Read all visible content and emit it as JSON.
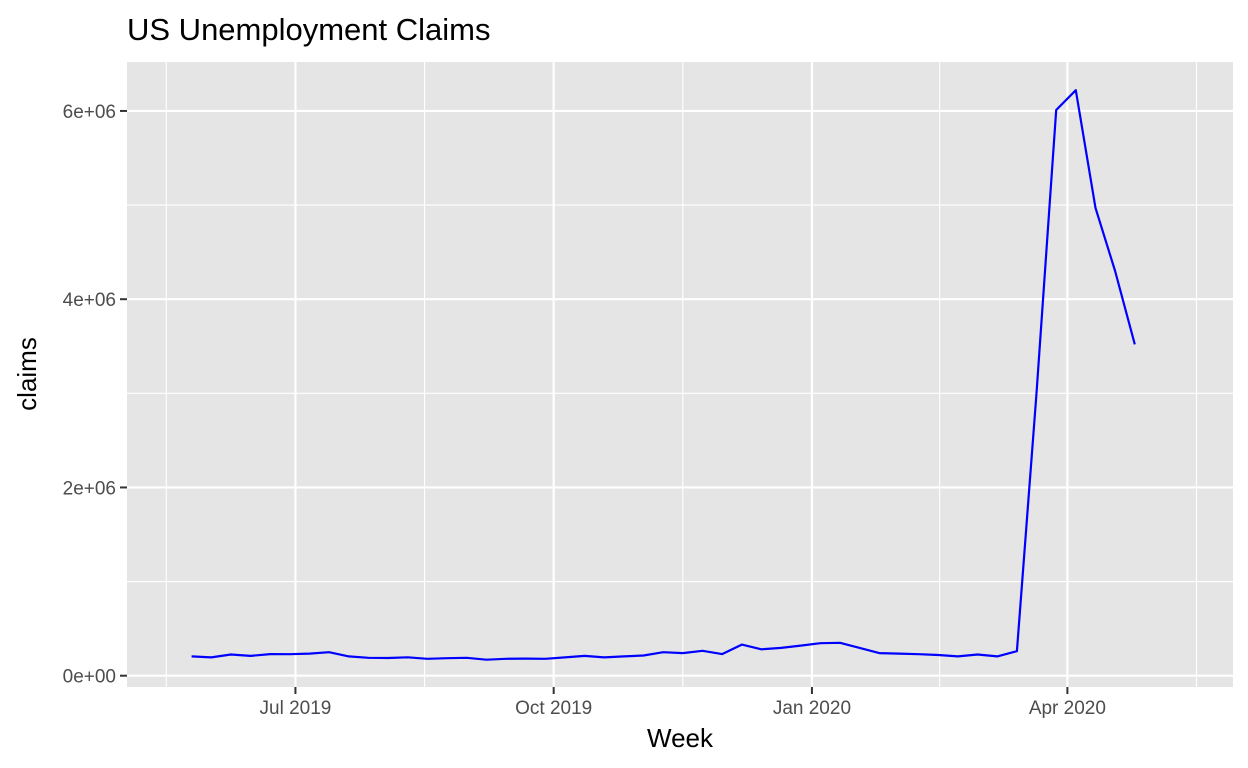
{
  "chart_data": {
    "type": "line",
    "title": "US Unemployment Claims",
    "xlabel": "Week",
    "ylabel": "claims",
    "colors": {
      "line": "#0000ff",
      "panel": "#e5e5e5",
      "grid": "#ffffff"
    },
    "grid": true,
    "legend": "none",
    "x_ticks": [
      {
        "label": "Jul 2019",
        "date": "2019-07-01"
      },
      {
        "label": "Oct 2019",
        "date": "2019-10-01"
      },
      {
        "label": "Jan 2020",
        "date": "2020-01-01"
      },
      {
        "label": "Apr 2020",
        "date": "2020-04-01"
      }
    ],
    "y_ticks": [
      {
        "label": "0e+00",
        "value": 0
      },
      {
        "label": "2e+06",
        "value": 2000000
      },
      {
        "label": "4e+06",
        "value": 4000000
      },
      {
        "label": "6e+06",
        "value": 6000000
      }
    ],
    "xlim": [
      "2019-05-02",
      "2020-05-30"
    ],
    "ylim": [
      -120000,
      6520000
    ],
    "series": [
      {
        "x": [
          "2019-05-25",
          "2019-06-01",
          "2019-06-08",
          "2019-06-15",
          "2019-06-22",
          "2019-06-29",
          "2019-07-06",
          "2019-07-13",
          "2019-07-20",
          "2019-07-27",
          "2019-08-03",
          "2019-08-10",
          "2019-08-17",
          "2019-08-24",
          "2019-08-31",
          "2019-09-07",
          "2019-09-14",
          "2019-09-21",
          "2019-09-28",
          "2019-10-05",
          "2019-10-12",
          "2019-10-19",
          "2019-10-26",
          "2019-11-02",
          "2019-11-09",
          "2019-11-16",
          "2019-11-23",
          "2019-11-30",
          "2019-12-07",
          "2019-12-14",
          "2019-12-21",
          "2019-12-28",
          "2020-01-04",
          "2020-01-11",
          "2020-01-18",
          "2020-01-25",
          "2020-02-01",
          "2020-02-08",
          "2020-02-15",
          "2020-02-22",
          "2020-02-29",
          "2020-03-07",
          "2020-03-14",
          "2020-03-21",
          "2020-03-28",
          "2020-04-04",
          "2020-04-11",
          "2020-04-18",
          "2020-04-25"
        ],
        "values": [
          205000,
          195000,
          225000,
          210000,
          230000,
          228000,
          235000,
          250000,
          205000,
          190000,
          188000,
          196000,
          180000,
          186000,
          190000,
          170000,
          180000,
          182000,
          180000,
          195000,
          210000,
          195000,
          205000,
          215000,
          250000,
          240000,
          265000,
          230000,
          330000,
          280000,
          295000,
          320000,
          345000,
          350000,
          295000,
          240000,
          235000,
          228000,
          220000,
          205000,
          225000,
          205000,
          260000,
          3000000,
          6010000,
          6220000,
          4970000,
          4300000,
          3520000
        ]
      }
    ]
  }
}
